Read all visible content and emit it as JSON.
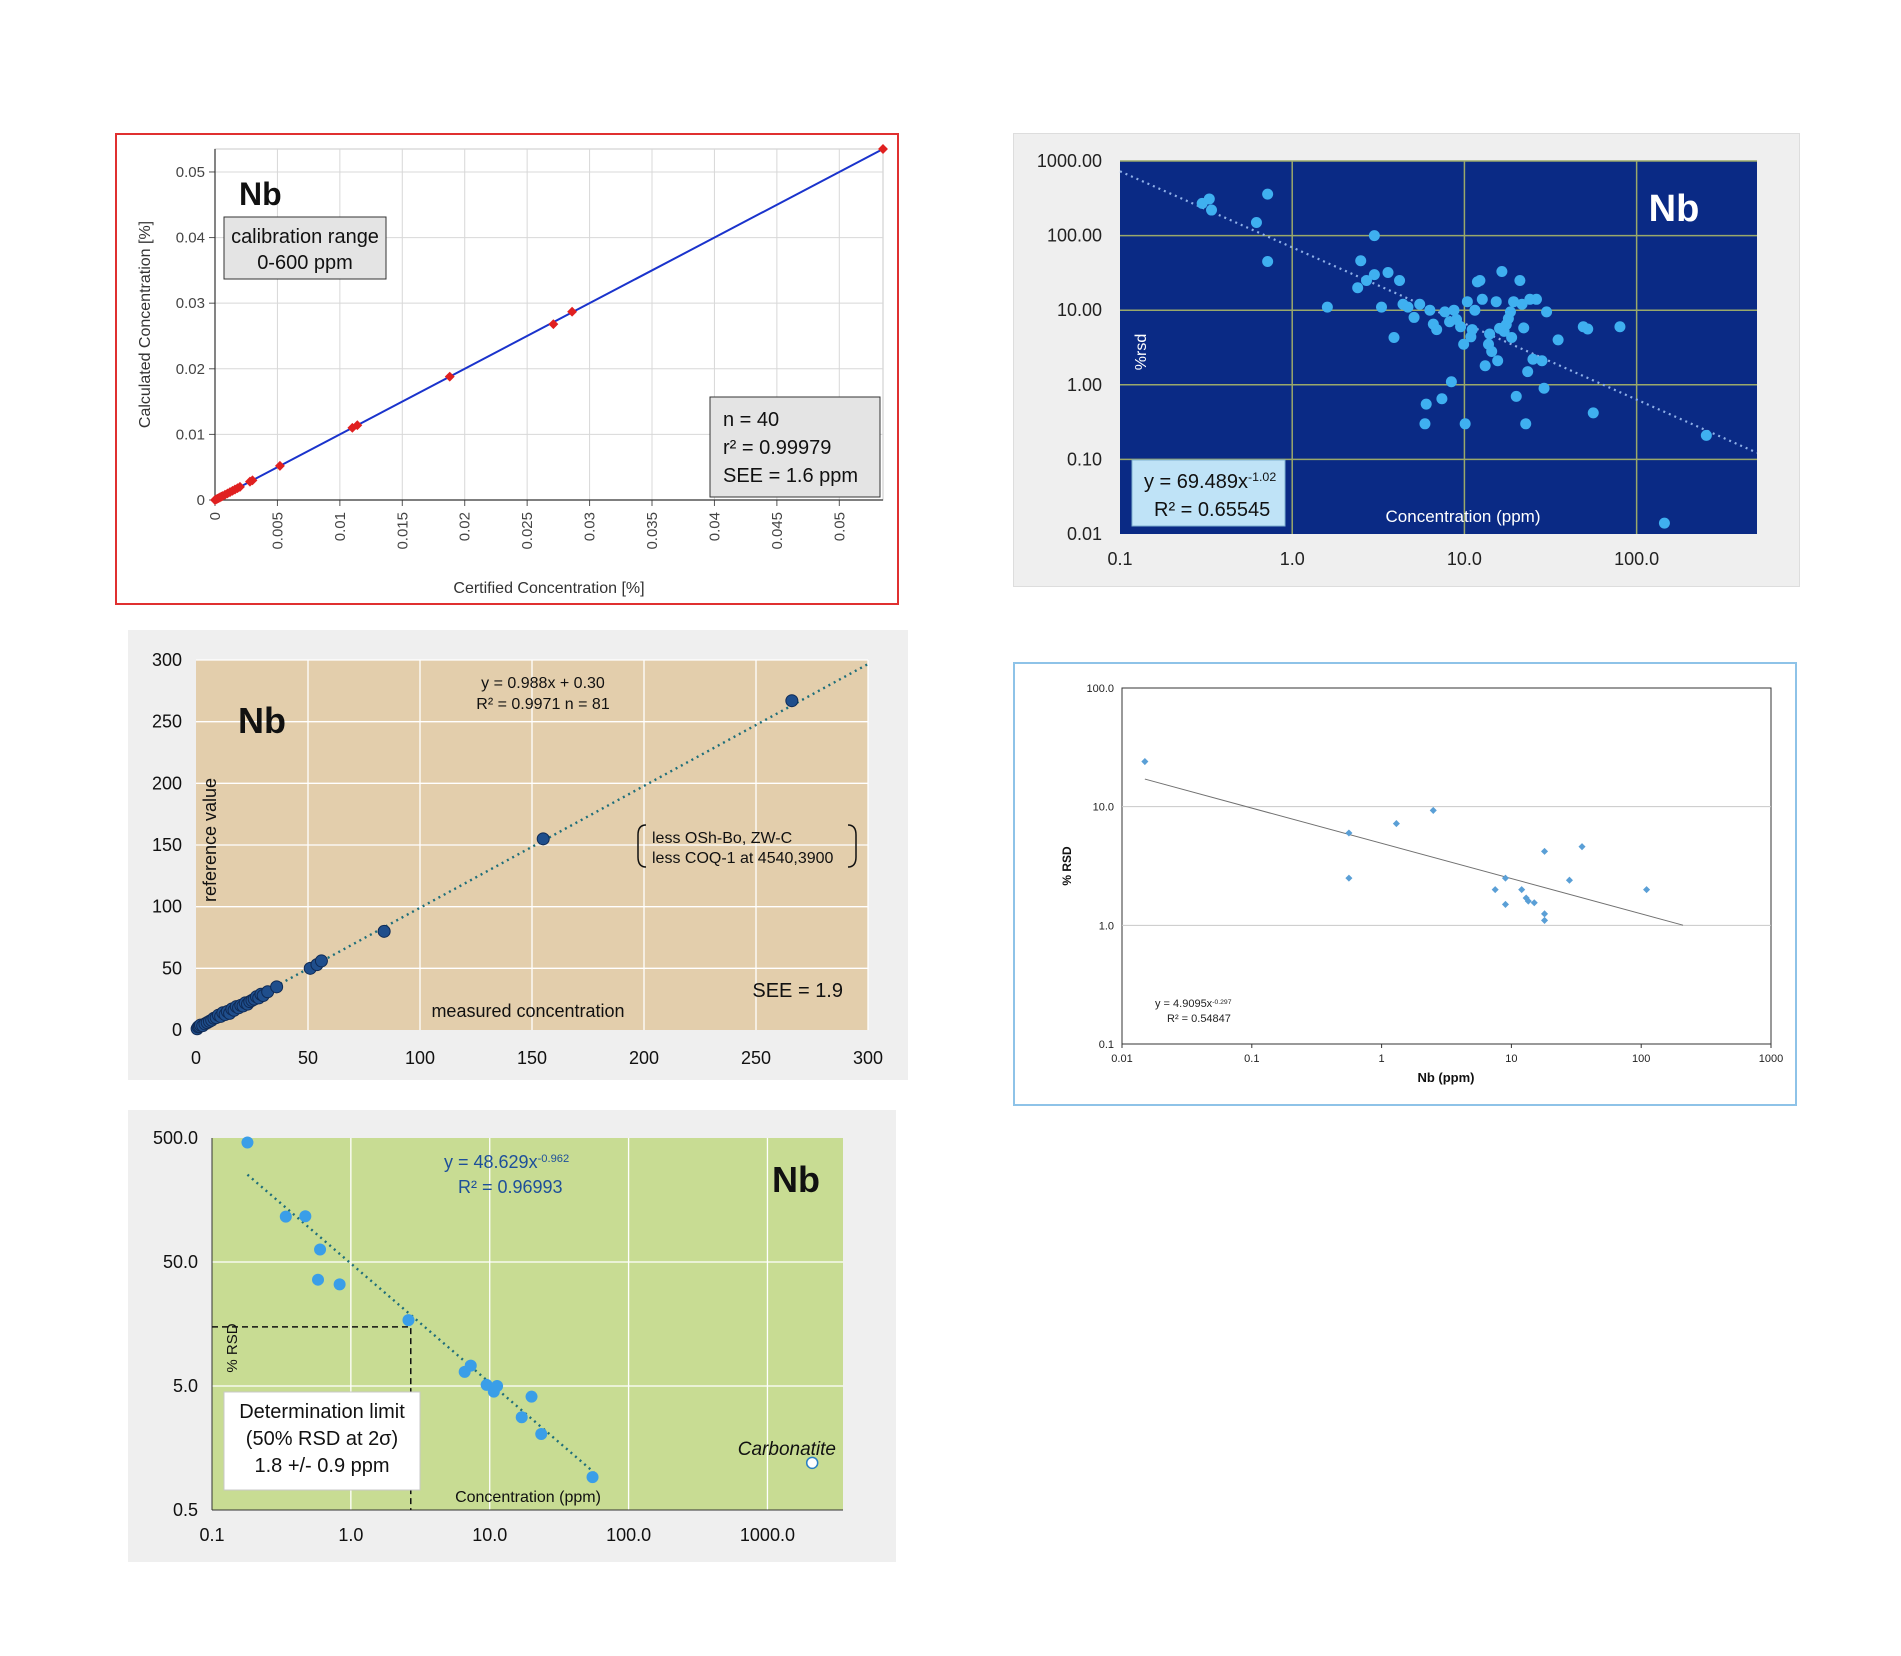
{
  "chart_data": [
    {
      "id": "p1",
      "type": "scatter",
      "element": "Nb",
      "box_line1": "calibration range",
      "box_line2": "0-600 ppm",
      "stats": [
        "n = 40",
        "r² = 0.99979",
        "SEE = 1.6 ppm"
      ],
      "xlabel": "Certified Concentration [%]",
      "ylabel": "Calculated Concentration [%]",
      "xlim": [
        0,
        0.0535
      ],
      "ylim": [
        0,
        0.0535
      ],
      "xticks": [
        0,
        0.005,
        0.01,
        0.015,
        0.02,
        0.025,
        0.03,
        0.035,
        0.04,
        0.045,
        0.05
      ],
      "xtick_labels": [
        "0",
        "0.005",
        "0.01",
        "0.015",
        "0.02",
        "0.025",
        "0.03",
        "0.035",
        "0.04",
        "0.045",
        "0.05"
      ],
      "yticks": [
        0,
        0.01,
        0.02,
        0.03,
        0.04,
        0.05
      ],
      "ytick_labels": [
        "0",
        "0.01",
        "0.02",
        "0.03",
        "0.04",
        "0.05"
      ],
      "grid": true,
      "line_color": "#1a33cc",
      "point_color": "#e02020",
      "fit_line": [
        [
          0,
          0
        ],
        [
          0.0535,
          0.0535
        ]
      ],
      "points": [
        [
          0,
          0
        ],
        [
          0.0001,
          0.0001
        ],
        [
          0.0002,
          0.0002
        ],
        [
          0.0003,
          0.0003
        ],
        [
          0.0004,
          0.0004
        ],
        [
          0.0005,
          0.0005
        ],
        [
          0.0006,
          0.0006
        ],
        [
          0.0008,
          0.0008
        ],
        [
          0.001,
          0.001
        ],
        [
          0.0012,
          0.0012
        ],
        [
          0.0014,
          0.0014
        ],
        [
          0.0016,
          0.0016
        ],
        [
          0.0018,
          0.0018
        ],
        [
          0.002,
          0.002
        ],
        [
          0.0028,
          0.0028
        ],
        [
          0.003,
          0.003
        ],
        [
          0.0052,
          0.0052
        ],
        [
          0.011,
          0.011
        ],
        [
          0.0114,
          0.0114
        ],
        [
          0.0188,
          0.0188
        ],
        [
          0.0271,
          0.0268
        ],
        [
          0.0286,
          0.0287
        ],
        [
          0.0535,
          0.0535
        ]
      ]
    },
    {
      "id": "p2",
      "type": "scatter",
      "element": "Nb",
      "equation": "y = 69.489x",
      "equation_exp": "-1.02",
      "r2": "R² = 0.65545",
      "xlabel": "Concentration (ppm)",
      "ylabel": "%rsd",
      "x_scale": "log",
      "y_scale": "log",
      "xlim": [
        0.1,
        500
      ],
      "ylim": [
        0.01,
        1000
      ],
      "xtick_labels": [
        "0.1",
        "1.0",
        "10.0",
        "100.0"
      ],
      "ytick_labels": [
        "1000.00",
        "100.00",
        "10.00",
        "1.00",
        "0.10",
        "0.01"
      ],
      "grid": true,
      "background_color": "#0a2a85",
      "grid_color": "#9aa86a",
      "point_color": "#3fb0f0",
      "trend": {
        "a": 69.489,
        "b": -1.02
      },
      "points": [
        [
          0.3,
          270
        ],
        [
          0.33,
          310
        ],
        [
          0.34,
          220
        ],
        [
          0.62,
          150
        ],
        [
          0.72,
          360
        ],
        [
          0.72,
          45
        ],
        [
          1.6,
          11
        ],
        [
          2.4,
          20
        ],
        [
          2.5,
          46
        ],
        [
          2.7,
          25
        ],
        [
          3.0,
          30
        ],
        [
          3.0,
          100
        ],
        [
          3.3,
          11
        ],
        [
          3.6,
          32
        ],
        [
          3.9,
          4.3
        ],
        [
          4.2,
          25
        ],
        [
          4.4,
          12
        ],
        [
          4.7,
          11
        ],
        [
          5.1,
          8
        ],
        [
          5.5,
          12
        ],
        [
          5.9,
          0.3
        ],
        [
          6.0,
          0.55
        ],
        [
          6.3,
          10
        ],
        [
          6.6,
          6.5
        ],
        [
          6.9,
          5.5
        ],
        [
          7.4,
          0.65
        ],
        [
          7.7,
          9.5
        ],
        [
          8.2,
          7
        ],
        [
          8.4,
          1.1
        ],
        [
          8.7,
          10
        ],
        [
          9.0,
          7.5
        ],
        [
          9.5,
          6
        ],
        [
          9.9,
          3.5
        ],
        [
          10.1,
          0.3
        ],
        [
          10.4,
          13
        ],
        [
          10.9,
          4.4
        ],
        [
          11.1,
          5.5
        ],
        [
          11.5,
          10
        ],
        [
          11.9,
          24
        ],
        [
          12.3,
          25
        ],
        [
          12.7,
          14
        ],
        [
          13.2,
          1.8
        ],
        [
          13.8,
          3.5
        ],
        [
          14.0,
          4.8
        ],
        [
          14.4,
          2.8
        ],
        [
          15.3,
          13
        ],
        [
          15.6,
          2.1
        ],
        [
          16.0,
          5.7
        ],
        [
          16.5,
          33
        ],
        [
          17.0,
          5.2
        ],
        [
          17.5,
          6.4
        ],
        [
          18.0,
          7.7
        ],
        [
          18.5,
          9.5
        ],
        [
          18.8,
          4.3
        ],
        [
          19.3,
          13
        ],
        [
          20.0,
          0.7
        ],
        [
          21.0,
          25
        ],
        [
          21.6,
          12
        ],
        [
          22.1,
          5.8
        ],
        [
          22.7,
          0.3
        ],
        [
          23.3,
          1.5
        ],
        [
          24.0,
          14
        ],
        [
          25.0,
          2.2
        ],
        [
          26.2,
          14
        ],
        [
          28.2,
          2.1
        ],
        [
          29.0,
          0.9
        ],
        [
          30.0,
          9.5
        ],
        [
          35.0,
          4.0
        ],
        [
          49.0,
          6.0
        ],
        [
          52.0,
          5.6
        ],
        [
          56.0,
          0.42
        ],
        [
          80.0,
          6.0
        ],
        [
          254,
          0.21
        ],
        [
          145,
          0.014
        ]
      ]
    },
    {
      "id": "p3",
      "type": "scatter",
      "element": "Nb",
      "equation": "y = 0.988x + 0.30",
      "stats_line": "R² = 0.9971   n = 81",
      "note1": "less OSh-Bo, ZW-C",
      "note2": "less COQ-1 at 4540,3900",
      "see": "SEE = 1.9",
      "xlabel": "measured concentration",
      "ylabel": "reference value",
      "xlim": [
        0,
        300
      ],
      "ylim": [
        0,
        300
      ],
      "xticks": [
        0,
        50,
        100,
        150,
        200,
        250,
        300
      ],
      "yticks": [
        0,
        50,
        100,
        150,
        200,
        250,
        300
      ],
      "grid": true,
      "background_color": "#e3ceac",
      "point_color": "#1f4e8c",
      "trend": {
        "m": 0.988,
        "c": 0.3
      },
      "points": [
        [
          0.5,
          1
        ],
        [
          1,
          2.5
        ],
        [
          1.5,
          3
        ],
        [
          2,
          4
        ],
        [
          3,
          3.5
        ],
        [
          4,
          5
        ],
        [
          5,
          6
        ],
        [
          6,
          7
        ],
        [
          7,
          8
        ],
        [
          8,
          9.5
        ],
        [
          9,
          10
        ],
        [
          10,
          12
        ],
        [
          11,
          11
        ],
        [
          12,
          14
        ],
        [
          13,
          12.5
        ],
        [
          14,
          15
        ],
        [
          15,
          13.5
        ],
        [
          16,
          17
        ],
        [
          17,
          16
        ],
        [
          18,
          19
        ],
        [
          19,
          18
        ],
        [
          20,
          20
        ],
        [
          21,
          19.5
        ],
        [
          22,
          22
        ],
        [
          23,
          21
        ],
        [
          24,
          23
        ],
        [
          25,
          24
        ],
        [
          26,
          25
        ],
        [
          27,
          27
        ],
        [
          28,
          26
        ],
        [
          29,
          29
        ],
        [
          30,
          28
        ],
        [
          32,
          31
        ],
        [
          36,
          35
        ],
        [
          51,
          50
        ],
        [
          54,
          53
        ],
        [
          56,
          56
        ],
        [
          84,
          80
        ],
        [
          155,
          155
        ],
        [
          266,
          267
        ]
      ]
    },
    {
      "id": "p4",
      "type": "scatter",
      "equation": "y = 4.9095x",
      "equation_exp": "-0.297",
      "r2": "R² = 0.54847",
      "xlabel": "Nb (ppm)",
      "ylabel": "% RSD",
      "x_scale": "log",
      "y_scale": "log",
      "xlim": [
        0.01,
        1000
      ],
      "ylim": [
        0.1,
        100
      ],
      "xtick_labels": [
        "0.01",
        "0.1",
        "1",
        "10",
        "100",
        "1000"
      ],
      "ytick_labels": [
        "100.0",
        "10.0",
        "1.0",
        "0.1"
      ],
      "grid": true,
      "point_color": "#5a9fd6",
      "line_color": "#707070",
      "trend": {
        "a": 4.9095,
        "b": -0.297,
        "xmin": 0.015,
        "xmax": 210
      },
      "points": [
        [
          0.015,
          24
        ],
        [
          0.56,
          6
        ],
        [
          0.56,
          2.5
        ],
        [
          1.3,
          7.2
        ],
        [
          2.5,
          9.3
        ],
        [
          7.5,
          2
        ],
        [
          9,
          2.5
        ],
        [
          9,
          1.5
        ],
        [
          12,
          2
        ],
        [
          13,
          1.7
        ],
        [
          13.5,
          1.6
        ],
        [
          15,
          1.55
        ],
        [
          18,
          1.25
        ],
        [
          18,
          1.1
        ],
        [
          18,
          4.2
        ],
        [
          28,
          2.4
        ],
        [
          35,
          4.6
        ],
        [
          110,
          2
        ]
      ]
    },
    {
      "id": "p5",
      "type": "scatter",
      "element": "Nb",
      "equation": "y = 48.629x",
      "equation_exp": "-0.962",
      "r2": "R² = 0.96993",
      "box_line1": "Determination limit",
      "box_line2": "(50% RSD at 2σ)",
      "box_line3": "1.8 +/- 0.9 ppm",
      "annotation": "Carbonatite",
      "xlabel": "Concentration (ppm)",
      "ylabel": "% RSD",
      "x_scale": "log",
      "y_scale": "log",
      "xlim": [
        0.1,
        3500
      ],
      "ylim": [
        0.5,
        500
      ],
      "xtick_labels": [
        "0.1",
        "1.0",
        "10.0",
        "100.0",
        "1000.0"
      ],
      "ytick_labels": [
        "500.0",
        "50.0",
        "5.0",
        "0.5"
      ],
      "grid": true,
      "background_color": "#c8dc93",
      "point_color": "#3a9ee8",
      "trend": {
        "a": 48.629,
        "b": -0.962,
        "xmin": 0.18,
        "xmax": 56
      },
      "determination_limit": {
        "x": 2.7,
        "y": 15
      },
      "points": [
        [
          0.18,
          460
        ],
        [
          0.34,
          116
        ],
        [
          0.47,
          117
        ],
        [
          0.6,
          63
        ],
        [
          0.58,
          36
        ],
        [
          0.83,
          33
        ],
        [
          2.6,
          17
        ],
        [
          6.6,
          6.5
        ],
        [
          7.3,
          7.3
        ],
        [
          9.5,
          5.1
        ],
        [
          10.7,
          4.5
        ],
        [
          11.3,
          5
        ],
        [
          17,
          2.8
        ],
        [
          20,
          4.1
        ],
        [
          23.5,
          2.05
        ],
        [
          55,
          0.92
        ]
      ],
      "hollow_points": [
        [
          2100,
          1.2
        ]
      ]
    }
  ]
}
